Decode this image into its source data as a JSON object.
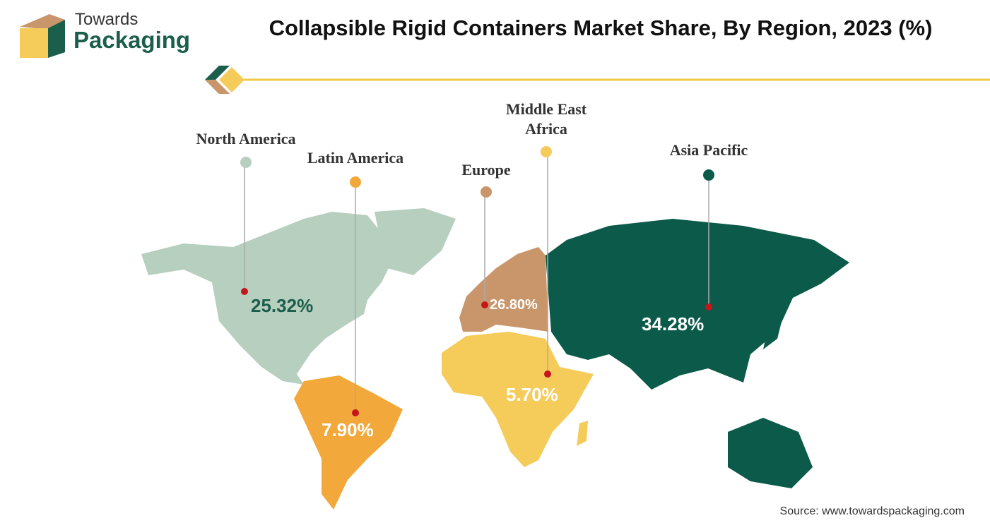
{
  "logo": {
    "line1": "Towards",
    "line2": "Packaging"
  },
  "title": "Collapsible Rigid Containers Market Share, By Region, 2023 (%)",
  "regions": [
    {
      "name": "North America",
      "value": "25.32%",
      "color": "#b7cfbe"
    },
    {
      "name": "Latin America",
      "value": "7.90%",
      "color": "#f2a83a"
    },
    {
      "name": "Europe",
      "value": "26.80%",
      "color": "#c9966b"
    },
    {
      "name": "Middle East Africa",
      "value": "5.70%",
      "color": "#f5cc5a"
    },
    {
      "name": "Asia Pacific",
      "value": "34.28%",
      "color": "#0b5a4a"
    }
  ],
  "source": "Source: www.towardspackaging.com"
}
